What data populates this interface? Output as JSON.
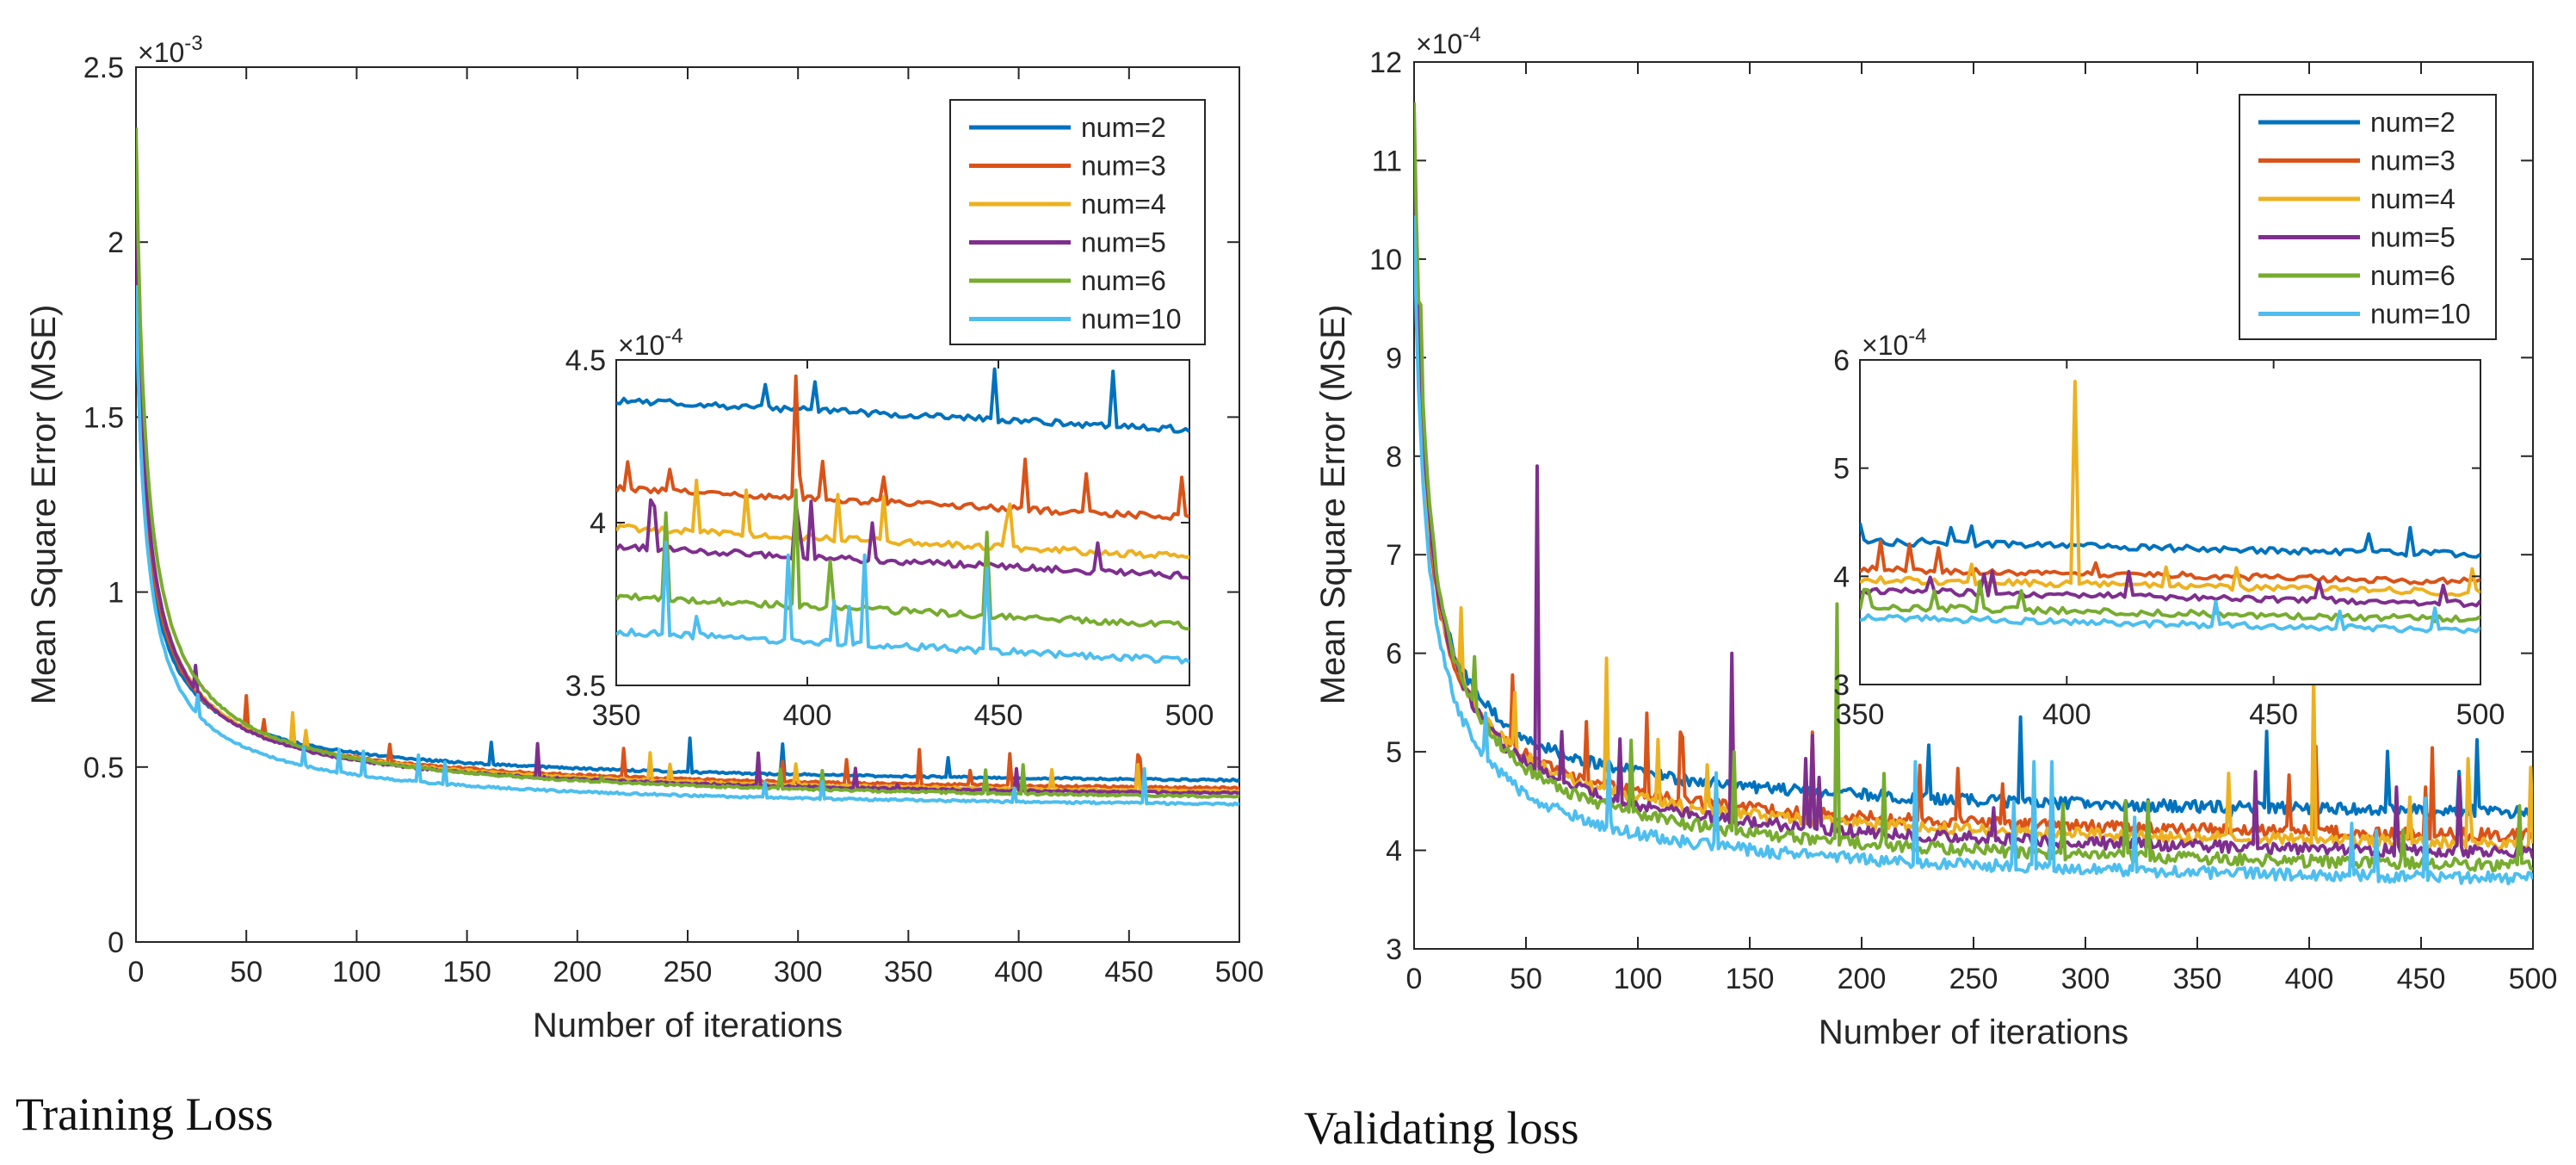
{
  "colors": {
    "num2": "#0072BD",
    "num3": "#D95319",
    "num4": "#EDB120",
    "num5": "#7E2F8E",
    "num6": "#77AC30",
    "num10": "#4DBEEE",
    "axis": "#262626"
  },
  "chart_data": [
    {
      "type": "line",
      "id": "training",
      "caption": "Training Loss",
      "xlabel": "Number of iterations",
      "ylabel": "Mean Square Error (MSE)",
      "exponent_base": "×10",
      "exponent_power": "-3",
      "xlim": [
        0,
        500
      ],
      "ylim": [
        0,
        2.5
      ],
      "xticks": [
        0,
        50,
        100,
        150,
        200,
        250,
        300,
        350,
        400,
        450,
        500
      ],
      "yticks": [
        0,
        0.5,
        1,
        1.5,
        2,
        2.5
      ],
      "ytick_labels": [
        "0",
        "0.5",
        "1",
        "1.5",
        "2",
        "2.5"
      ],
      "legend_position": "top-right",
      "series": [
        {
          "name": "num=2",
          "color_key": "num2",
          "start": 1.85,
          "final": 0.4286,
          "spikes": []
        },
        {
          "name": "num=3",
          "color_key": "num3",
          "start": 2.0,
          "final": 0.4015,
          "spikes": [
            [
              397,
              0.445
            ],
            [
              473,
              0.415
            ],
            [
              420,
              0.414
            ]
          ]
        },
        {
          "name": "num=4",
          "color_key": "num4",
          "start": 2.1,
          "final": 0.3895,
          "spikes": [
            [
              371,
              0.413
            ],
            [
              420,
              0.408
            ],
            [
              300,
              0.46
            ]
          ]
        },
        {
          "name": "num=5",
          "color_key": "num5",
          "start": 2.1,
          "final": 0.3836,
          "spikes": [
            [
              360,
              0.405
            ],
            [
              397,
              0.406
            ],
            [
              345,
              0.45
            ]
          ]
        },
        {
          "name": "num=6",
          "color_key": "num6",
          "start": 2.33,
          "final": 0.3683,
          "spikes": [
            [
              363,
              0.403
            ],
            [
              397,
              0.41
            ],
            [
              447,
              0.397
            ],
            [
              211,
              0.47
            ]
          ]
        },
        {
          "name": "num=10",
          "color_key": "num10",
          "start": 1.88,
          "final": 0.3575,
          "spikes": [
            [
              103,
              0.545
            ],
            [
              363,
              0.394
            ],
            [
              395,
              0.39
            ],
            [
              415,
              0.39
            ],
            [
              447,
              0.386
            ]
          ]
        }
      ],
      "inset": {
        "xlim": [
          350,
          500
        ],
        "ylim": [
          3.5,
          4.5
        ],
        "xticks": [
          350,
          400,
          450,
          500
        ],
        "yticks": [
          3.5,
          4,
          4.5
        ],
        "ytick_labels": [
          "3.5",
          "4",
          "4.5"
        ],
        "exponent_base": "×10",
        "exponent_power": "-4"
      }
    },
    {
      "type": "line",
      "id": "validating",
      "caption": "Validating loss",
      "xlabel": "Number of iterations",
      "ylabel": "Mean Square Error (MSE)",
      "exponent_base": "×10",
      "exponent_power": "-4",
      "xlim": [
        0,
        500
      ],
      "ylim": [
        3,
        12
      ],
      "xticks": [
        0,
        50,
        100,
        150,
        200,
        250,
        300,
        350,
        400,
        450,
        500
      ],
      "yticks": [
        3,
        4,
        5,
        6,
        7,
        8,
        9,
        10,
        11,
        12
      ],
      "ytick_labels": [
        "3",
        "4",
        "5",
        "6",
        "7",
        "8",
        "9",
        "10",
        "11",
        "12"
      ],
      "legend_position": "top-right",
      "series": [
        {
          "name": "num=2",
          "color_key": "num2",
          "start": 10.4,
          "final": 4.2,
          "spikes": [
            [
              365,
              4.35
            ],
            [
              372,
              4.45
            ]
          ]
        },
        {
          "name": "num=3",
          "color_key": "num3",
          "start": 10.6,
          "final": 3.95,
          "spikes": [
            [
              119,
              5.2
            ],
            [
              178,
              5.2
            ]
          ]
        },
        {
          "name": "num=4",
          "color_key": "num4",
          "start": 11.0,
          "final": 3.85,
          "spikes": [
            [
              45,
              5.6
            ],
            [
              86,
              5.95
            ],
            [
              402,
              5.8
            ]
          ]
        },
        {
          "name": "num=5",
          "color_key": "num5",
          "start": 11.2,
          "final": 3.75,
          "spikes": [
            [
              55,
              7.9
            ],
            [
              142,
              6.0
            ]
          ]
        },
        {
          "name": "num=6",
          "color_key": "num6",
          "start": 11.65,
          "final": 3.6,
          "spikes": [
            [
              189,
              6.5
            ],
            [
              318,
              4.5
            ],
            [
              143,
              5.0
            ]
          ]
        },
        {
          "name": "num=10",
          "color_key": "num10",
          "start": 10.5,
          "final": 3.5,
          "spikes": [
            [
              224,
              4.9
            ],
            [
              277,
              4.9
            ],
            [
              285,
              4.9
            ],
            [
              87,
              4.9
            ]
          ]
        }
      ],
      "inset": {
        "xlim": [
          350,
          500
        ],
        "ylim": [
          3,
          6
        ],
        "xticks": [
          350,
          400,
          450,
          500
        ],
        "yticks": [
          3,
          4,
          5,
          6
        ],
        "ytick_labels": [
          "3",
          "4",
          "5",
          "6"
        ],
        "exponent_base": "×10",
        "exponent_power": "-4"
      }
    }
  ]
}
